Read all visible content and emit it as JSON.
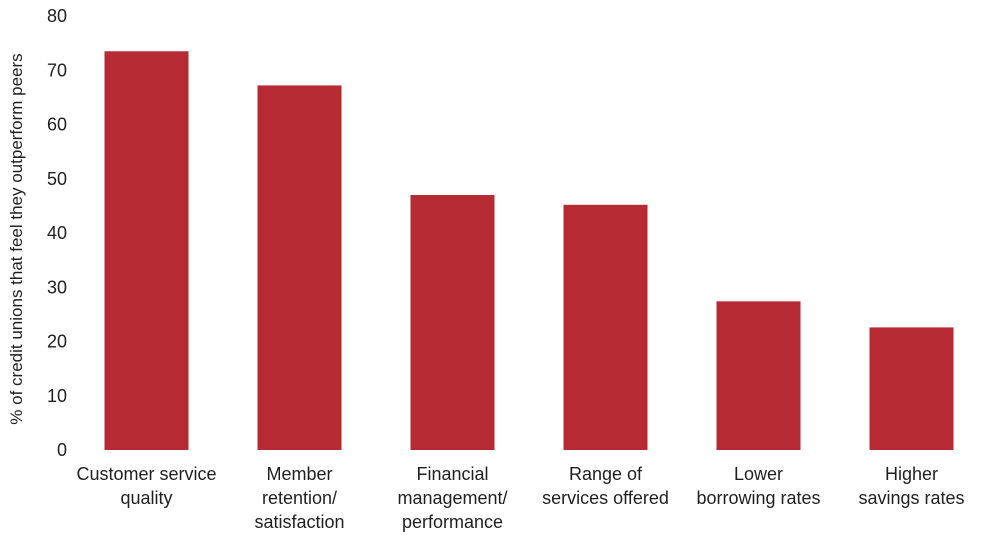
{
  "chart_data": {
    "type": "bar",
    "categories": [
      "Customer service quality",
      "Member retention/ satisfaction",
      "Financial management/ performance",
      "Range of services offered",
      "Lower borrowing rates",
      "Higher savings rates"
    ],
    "category_lines": [
      [
        "Customer service",
        "quality"
      ],
      [
        "Member",
        "retention/",
        "satisfaction"
      ],
      [
        "Financial",
        "management/",
        "performance"
      ],
      [
        "Range of",
        "services offered"
      ],
      [
        "Lower",
        "borrowing rates"
      ],
      [
        "Higher",
        "savings rates"
      ]
    ],
    "values": [
      73.5,
      67.2,
      47.0,
      45.2,
      27.4,
      22.6
    ],
    "ylabel": "% of credit unions that feel they outperform peers",
    "xlabel": "",
    "ylim": [
      0,
      80
    ],
    "yticks": [
      0,
      10,
      20,
      30,
      40,
      50,
      60,
      70,
      80
    ],
    "grid": false,
    "bar_color": "#b52a33"
  }
}
